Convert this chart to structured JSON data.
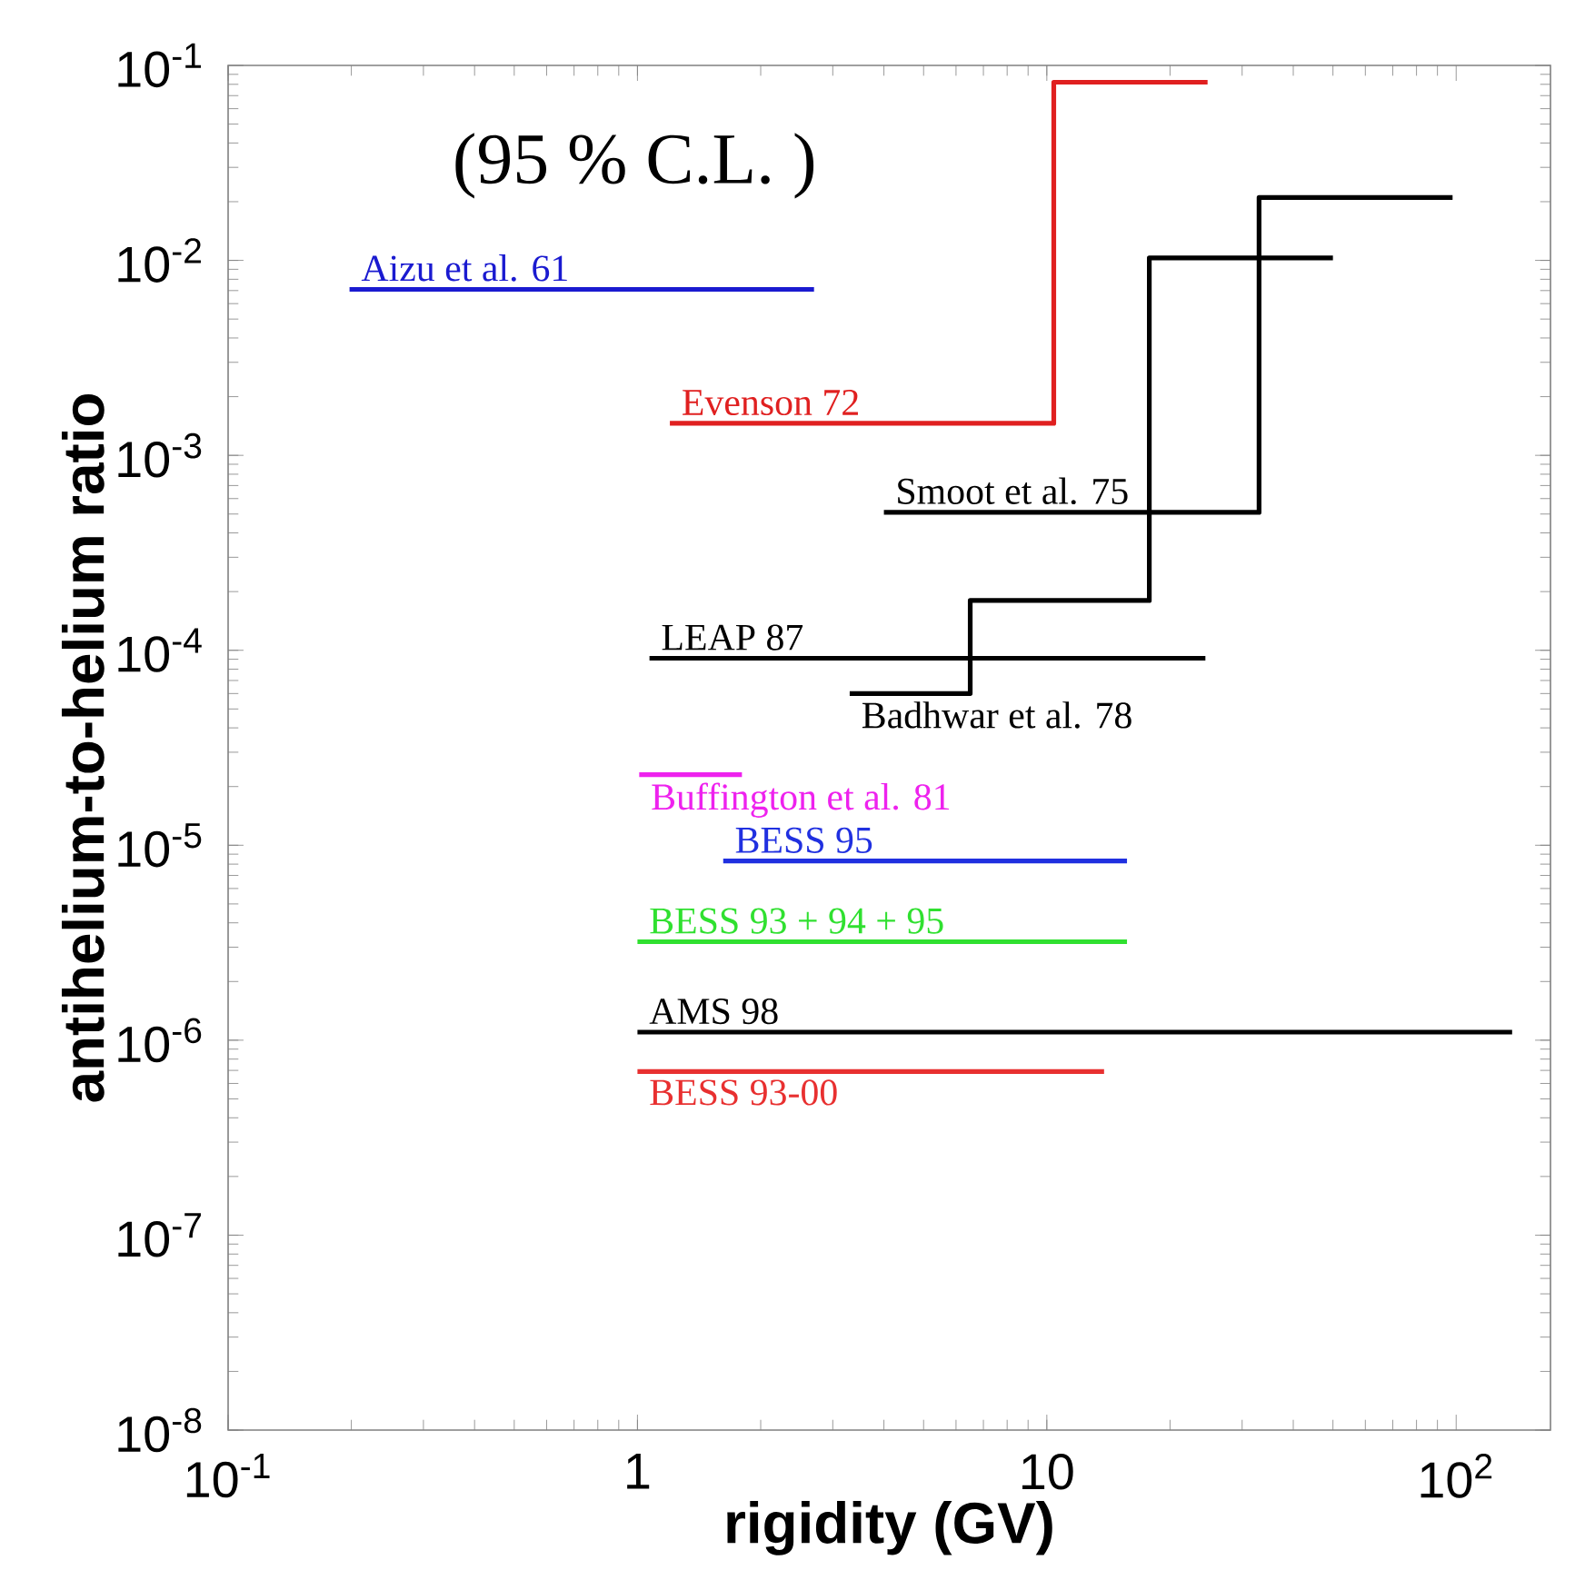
{
  "chart_data": {
    "type": "line",
    "xlabel": "rigidity (GV)",
    "ylabel": "antihelium-to-helium ratio",
    "log": "xy",
    "grid": false,
    "xlim": [
      0.1,
      170
    ],
    "ylim": [
      1e-08,
      0.1
    ],
    "xticks": [
      {
        "value": 0.1,
        "label": "10$^{-1}$"
      },
      1,
      10,
      {
        "value": 100,
        "label": "10$^{2}$"
      }
    ],
    "yticks": [
      {
        "value": 1e-08,
        "label": "10$^{-8}$"
      },
      {
        "value": 1e-07,
        "label": "10$^{-7}$"
      },
      {
        "value": 1e-06,
        "label": "10$^{-6}$"
      },
      {
        "value": 1e-05,
        "label": "10$^{-5}$"
      },
      {
        "value": 0.0001,
        "label": "10$^{-4}$"
      },
      {
        "value": 0.001,
        "label": "10$^{-3}$"
      },
      {
        "value": 0.01,
        "label": "10$^{-2}$"
      },
      {
        "value": 0.1,
        "label": "10$^{-1}$"
      }
    ],
    "annotations": [
      "(95 % C.L. )"
    ],
    "series": [
      {
        "name": "Aizu et al. 61",
        "color": "#1a1ad0",
        "x": [
          0.198,
          2.7
        ],
        "values": [
          0.0071,
          0.0071
        ]
      },
      {
        "name": "Evenson 72",
        "type": "step",
        "color": "#e02020",
        "x": [
          1.2,
          10.4,
          24.7
        ],
        "values": [
          0.00146,
          0.082,
          0.082
        ]
      },
      {
        "name": "Smoot et al. 75",
        "type": "step",
        "color": "#000000",
        "x": [
          4.0,
          33,
          98
        ],
        "values": [
          0.00051,
          0.021,
          0.021
        ]
      },
      {
        "name": "Badhwar et al. 78",
        "type": "step",
        "color": "#000000",
        "x": [
          3.3,
          6.5,
          17.8,
          50
        ],
        "values": [
          6e-05,
          0.00018,
          0.0103,
          0.0103
        ]
      },
      {
        "name": "LEAP 87",
        "color": "#000000",
        "x": [
          1.07,
          24.4
        ],
        "values": [
          9.1e-05,
          9.1e-05
        ]
      },
      {
        "name": "Buffington et al. 81",
        "color": "#ee22ee",
        "x": [
          1.01,
          1.8
        ],
        "values": [
          2.3e-05,
          2.3e-05
        ]
      },
      {
        "name": "BESS 95",
        "color": "#2030e0",
        "x": [
          1.62,
          15.7
        ],
        "values": [
          8.3e-06,
          8.3e-06
        ]
      },
      {
        "name": "BESS 93 + 94 + 95",
        "color": "#30e030",
        "x": [
          1.0,
          15.7
        ],
        "values": [
          3.2e-06,
          3.2e-06
        ]
      },
      {
        "name": "AMS 98",
        "color": "#000000",
        "x": [
          1.0,
          137
        ],
        "values": [
          1.1e-06,
          1.1e-06
        ]
      },
      {
        "name": "BESS 93-00",
        "color": "#e83030",
        "x": [
          1.0,
          13.8
        ],
        "values": [
          6.9e-07,
          6.9e-07
        ]
      }
    ]
  }
}
